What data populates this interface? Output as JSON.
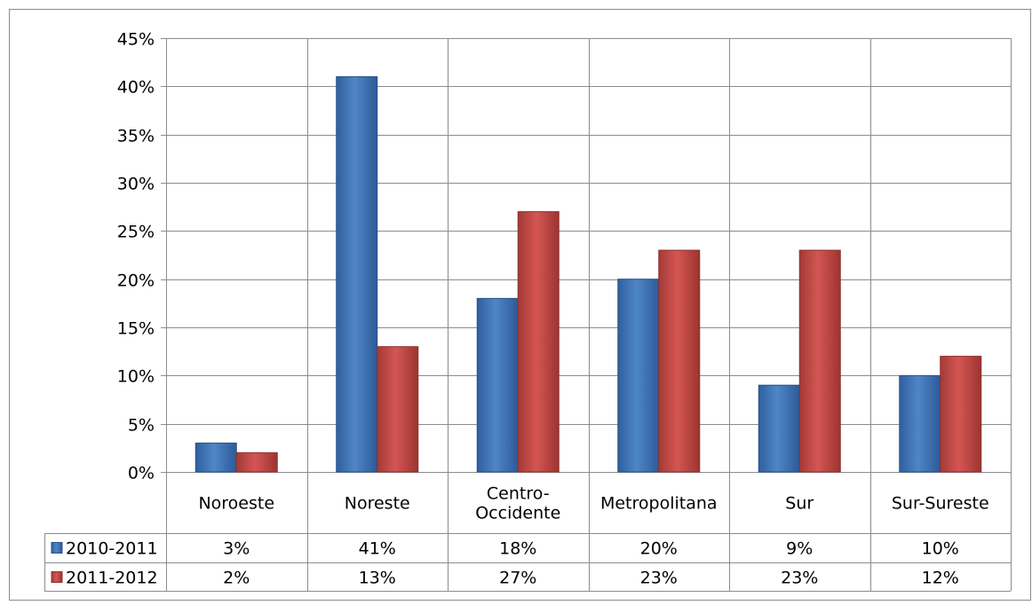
{
  "chart_data": {
    "type": "bar",
    "title": "",
    "xlabel": "",
    "ylabel": "",
    "ylim": [
      0,
      45
    ],
    "yticks": [
      "0%",
      "5%",
      "10%",
      "15%",
      "20%",
      "25%",
      "30%",
      "35%",
      "40%",
      "45%"
    ],
    "grid": true,
    "legend": "in data table",
    "categories": [
      "Noroeste",
      "Noreste",
      "Centro-Occidente",
      "Metropolitana",
      "Sur",
      "Sur-Sureste"
    ],
    "category_lines": [
      [
        "Noroeste"
      ],
      [
        "Noreste"
      ],
      [
        "Centro-",
        "Occidente"
      ],
      [
        "Metropolitana"
      ],
      [
        "Sur"
      ],
      [
        "Sur-Sureste"
      ]
    ],
    "series": [
      {
        "name": "2010-2011",
        "values": [
          3,
          41,
          18,
          20,
          9,
          10
        ],
        "labels": [
          "3%",
          "41%",
          "18%",
          "20%",
          "9%",
          "10%"
        ],
        "color": "#4a7ebb"
      },
      {
        "name": "2011-2012",
        "values": [
          2,
          13,
          27,
          23,
          23,
          12
        ],
        "labels": [
          "2%",
          "13%",
          "27%",
          "23%",
          "23%",
          "12%"
        ],
        "color": "#be4b48"
      }
    ]
  }
}
